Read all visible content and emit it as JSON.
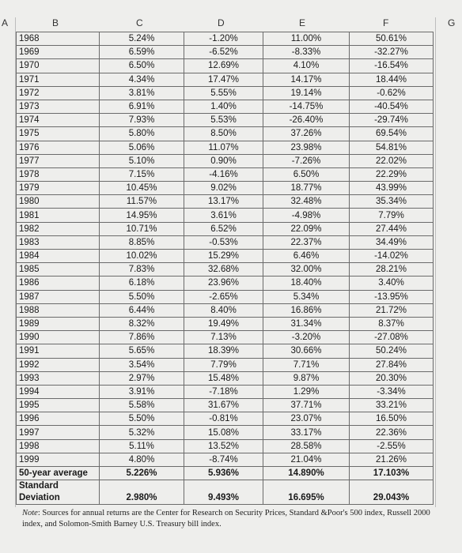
{
  "columns": [
    "A",
    "B",
    "C",
    "D",
    "E",
    "F",
    "G"
  ],
  "rows": [
    [
      "1968",
      "5.24%",
      "-1.20%",
      "11.00%",
      "50.61%"
    ],
    [
      "1969",
      "6.59%",
      "-6.52%",
      "-8.33%",
      "-32.27%"
    ],
    [
      "1970",
      "6.50%",
      "12.69%",
      "4.10%",
      "-16.54%"
    ],
    [
      "1971",
      "4.34%",
      "17.47%",
      "14.17%",
      "18.44%"
    ],
    [
      "1972",
      "3.81%",
      "5.55%",
      "19.14%",
      "-0.62%"
    ],
    [
      "1973",
      "6.91%",
      "1.40%",
      "-14.75%",
      "-40.54%"
    ],
    [
      "1974",
      "7.93%",
      "5.53%",
      "-26.40%",
      "-29.74%"
    ],
    [
      "1975",
      "5.80%",
      "8.50%",
      "37.26%",
      "69.54%"
    ],
    [
      "1976",
      "5.06%",
      "11.07%",
      "23.98%",
      "54.81%"
    ],
    [
      "1977",
      "5.10%",
      "0.90%",
      "-7.26%",
      "22.02%"
    ],
    [
      "1978",
      "7.15%",
      "-4.16%",
      "6.50%",
      "22.29%"
    ],
    [
      "1979",
      "10.45%",
      "9.02%",
      "18.77%",
      "43.99%"
    ],
    [
      "1980",
      "11.57%",
      "13.17%",
      "32.48%",
      "35.34%"
    ],
    [
      "1981",
      "14.95%",
      "3.61%",
      "-4.98%",
      "7.79%"
    ],
    [
      "1982",
      "10.71%",
      "6.52%",
      "22.09%",
      "27.44%"
    ],
    [
      "1983",
      "8.85%",
      "-0.53%",
      "22.37%",
      "34.49%"
    ],
    [
      "1984",
      "10.02%",
      "15.29%",
      "6.46%",
      "-14.02%"
    ],
    [
      "1985",
      "7.83%",
      "32.68%",
      "32.00%",
      "28.21%"
    ],
    [
      "1986",
      "6.18%",
      "23.96%",
      "18.40%",
      "3.40%"
    ],
    [
      "1987",
      "5.50%",
      "-2.65%",
      "5.34%",
      "-13.95%"
    ],
    [
      "1988",
      "6.44%",
      "8.40%",
      "16.86%",
      "21.72%"
    ],
    [
      "1989",
      "8.32%",
      "19.49%",
      "31.34%",
      "8.37%"
    ],
    [
      "1990",
      "7.86%",
      "7.13%",
      "-3.20%",
      "-27.08%"
    ],
    [
      "1991",
      "5.65%",
      "18.39%",
      "30.66%",
      "50.24%"
    ],
    [
      "1992",
      "3.54%",
      "7.79%",
      "7.71%",
      "27.84%"
    ],
    [
      "1993",
      "2.97%",
      "15.48%",
      "9.87%",
      "20.30%"
    ],
    [
      "1994",
      "3.91%",
      "-7.18%",
      "1.29%",
      "-3.34%"
    ],
    [
      "1995",
      "5.58%",
      "31.67%",
      "37.71%",
      "33.21%"
    ],
    [
      "1996",
      "5.50%",
      "-0.81%",
      "23.07%",
      "16.50%"
    ],
    [
      "1997",
      "5.32%",
      "15.08%",
      "33.17%",
      "22.36%"
    ],
    [
      "1998",
      "5.11%",
      "13.52%",
      "28.58%",
      "-2.55%"
    ],
    [
      "1999",
      "4.80%",
      "-8.74%",
      "21.04%",
      "21.26%"
    ]
  ],
  "average": {
    "label": "50-year average",
    "c": "5.226%",
    "d": "5.936%",
    "e": "14.890%",
    "f": "17.103%"
  },
  "stddev": {
    "label_line1": "Standard",
    "label_line2": "Deviation",
    "c": "2.980%",
    "d": "9.493%",
    "e": "16.695%",
    "f": "29.043%"
  },
  "note": {
    "prefix": "Note",
    "text": ": Sources for annual returns are the Center for Research on Security Prices, Standard &Poor's 500 index, Russell 2000 index, and Solomon-Smith Barney U.S. Treasury bill index."
  }
}
